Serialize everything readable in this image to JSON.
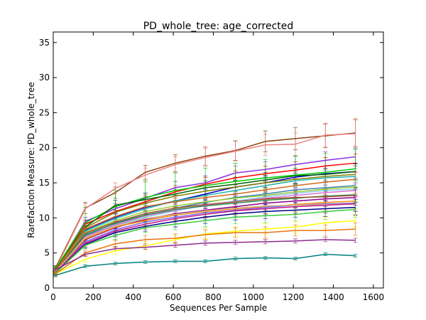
{
  "chart_data": {
    "type": "line",
    "title": "PD_whole_tree: age_corrected",
    "xlabel": "Sequences Per Sample",
    "ylabel": "Rarefaction Measure: PD_whole_tree",
    "xlim": [
      0,
      1650
    ],
    "ylim": [
      0,
      36.5
    ],
    "xticks": [
      "0",
      "200",
      "400",
      "600",
      "800",
      "1000",
      "1200",
      "1400",
      "1600"
    ],
    "yticks": [
      "0",
      "5",
      "10",
      "15",
      "20",
      "25",
      "30",
      "35"
    ],
    "grid": false,
    "legend": "none",
    "x": [
      10,
      160,
      310,
      460,
      610,
      760,
      910,
      1060,
      1210,
      1360,
      1510
    ],
    "series": [
      {
        "color": "#8b4513",
        "values": [
          2.8,
          11.4,
          13.6,
          16.5,
          17.8,
          18.8,
          19.6,
          20.9,
          21.3,
          21.7,
          22.1
        ],
        "err": [
          0.4,
          0.8,
          0.8,
          1.0,
          1.2,
          1.3,
          1.4,
          1.5,
          1.6,
          1.7,
          1.9
        ]
      },
      {
        "color": "#f08080",
        "values": [
          2.6,
          11.3,
          14.2,
          16.1,
          17.6,
          18.6,
          19.5,
          20.4,
          20.5,
          21.8,
          22.0
        ],
        "err": [
          0.4,
          0.7,
          0.8,
          1.0,
          1.1,
          1.3,
          1.4,
          1.5,
          1.6,
          1.7,
          2.2
        ]
      },
      {
        "color": "#8a2be2",
        "values": [
          2.5,
          9.5,
          11.3,
          12.8,
          14.3,
          15.0,
          16.4,
          16.9,
          17.6,
          18.2,
          18.7
        ],
        "err": [
          0.3,
          0.6,
          0.7,
          0.8,
          0.9,
          1.0,
          1.0,
          1.1,
          1.2,
          1.2,
          1.3
        ]
      },
      {
        "color": "#ff0000",
        "values": [
          2.4,
          9.1,
          10.9,
          12.3,
          13.7,
          14.8,
          15.7,
          16.3,
          16.8,
          17.4,
          17.8
        ],
        "err": [
          0.3,
          0.6,
          0.7,
          0.8,
          0.9,
          1.0,
          1.0,
          1.1,
          1.2,
          1.2,
          1.3
        ]
      },
      {
        "color": "#00cc00",
        "values": [
          2.7,
          9.3,
          11.6,
          12.9,
          13.9,
          14.6,
          15.2,
          15.7,
          16.1,
          16.5,
          17.0
        ],
        "err": [
          0.4,
          2.2,
          2.3,
          2.4,
          2.5,
          2.5,
          2.6,
          2.6,
          2.7,
          2.7,
          2.8
        ]
      },
      {
        "color": "#0000cd",
        "values": [
          2.3,
          8.3,
          10.1,
          11.5,
          12.4,
          13.4,
          14.4,
          15.0,
          15.8,
          16.3,
          16.6
        ],
        "err": [
          0.3,
          0.5,
          0.6,
          0.7,
          0.8,
          0.9,
          0.9,
          1.0,
          1.0,
          1.1,
          1.1
        ]
      },
      {
        "color": "#006400",
        "values": [
          2.6,
          8.7,
          11.8,
          12.6,
          13.4,
          14.3,
          14.8,
          15.4,
          16.0,
          16.2,
          16.6
        ],
        "err": [
          0.3,
          0.6,
          0.7,
          0.8,
          0.9,
          1.0,
          1.0,
          1.1,
          1.1,
          1.2,
          1.2
        ]
      },
      {
        "color": "#808000",
        "values": [
          2.5,
          8.6,
          10.8,
          12.1,
          13.1,
          13.8,
          14.4,
          15.0,
          15.5,
          15.9,
          16.2
        ],
        "err": [
          0.3,
          0.6,
          0.7,
          0.8,
          0.9,
          1.0,
          1.0,
          1.1,
          1.1,
          1.2,
          1.2
        ]
      },
      {
        "color": "#20b2aa",
        "values": [
          2.4,
          8.1,
          9.9,
          11.3,
          12.4,
          13.2,
          13.9,
          14.6,
          15.3,
          15.7,
          15.9
        ],
        "err": [
          0.3,
          0.5,
          0.6,
          0.7,
          0.8,
          0.9,
          0.9,
          1.0,
          1.0,
          1.1,
          1.1
        ]
      },
      {
        "color": "#d2691e",
        "values": [
          2.5,
          8.4,
          10.2,
          11.6,
          12.3,
          12.9,
          13.4,
          14.0,
          14.6,
          15.1,
          15.5
        ],
        "err": [
          0.3,
          0.5,
          0.6,
          0.7,
          0.8,
          0.9,
          0.9,
          1.0,
          1.0,
          1.1,
          1.1
        ]
      },
      {
        "color": "#4682b4",
        "values": [
          2.3,
          7.4,
          9.3,
          10.6,
          11.4,
          12.2,
          12.9,
          13.4,
          14.0,
          14.3,
          14.6
        ],
        "err": [
          0.3,
          0.5,
          0.6,
          0.7,
          0.8,
          0.9,
          0.9,
          1.0,
          1.0,
          1.1,
          1.1
        ]
      },
      {
        "color": "#9acd32",
        "values": [
          2.4,
          7.9,
          9.6,
          10.9,
          11.7,
          12.3,
          12.8,
          13.2,
          13.7,
          14.1,
          14.4
        ],
        "err": [
          0.3,
          0.5,
          0.6,
          0.7,
          0.8,
          0.9,
          0.9,
          1.0,
          1.0,
          1.1,
          1.1
        ]
      },
      {
        "color": "#87ceeb",
        "values": [
          2.3,
          7.1,
          8.9,
          10.1,
          11.0,
          11.8,
          12.4,
          13.0,
          13.5,
          13.9,
          14.1
        ],
        "err": [
          0.3,
          0.5,
          0.6,
          0.7,
          0.8,
          0.9,
          0.9,
          1.0,
          1.0,
          1.1,
          1.1
        ]
      },
      {
        "color": "#da70d6",
        "values": [
          2.2,
          7.3,
          9.0,
          10.3,
          11.1,
          11.8,
          12.3,
          12.8,
          13.2,
          13.6,
          13.9
        ],
        "err": [
          0.3,
          0.5,
          0.6,
          0.7,
          0.8,
          0.9,
          0.9,
          1.0,
          1.0,
          1.1,
          1.1
        ]
      },
      {
        "color": "#2e8b57",
        "values": [
          2.3,
          7.6,
          9.2,
          10.4,
          11.2,
          11.7,
          12.1,
          12.5,
          12.8,
          13.1,
          13.3
        ],
        "err": [
          0.3,
          0.5,
          0.6,
          0.7,
          0.8,
          0.9,
          0.9,
          1.0,
          1.0,
          1.1,
          1.1
        ]
      },
      {
        "color": "#a0522d",
        "values": [
          2.4,
          7.8,
          9.4,
          10.6,
          11.4,
          11.9,
          12.3,
          12.7,
          12.9,
          13.0,
          13.2
        ],
        "err": [
          0.3,
          0.5,
          0.6,
          0.7,
          0.8,
          0.9,
          0.9,
          1.0,
          1.0,
          1.1,
          1.1
        ]
      },
      {
        "color": "#8b008b",
        "values": [
          2.2,
          6.9,
          8.6,
          9.8,
          10.6,
          11.1,
          11.6,
          12.1,
          12.4,
          12.7,
          12.9
        ],
        "err": [
          0.3,
          0.5,
          0.6,
          0.7,
          0.8,
          0.9,
          0.9,
          1.0,
          1.0,
          1.1,
          1.1
        ]
      },
      {
        "color": "#ff8c00",
        "values": [
          2.3,
          7.0,
          8.7,
          9.6,
          10.4,
          10.9,
          11.3,
          11.6,
          11.9,
          12.2,
          12.4
        ],
        "err": [
          0.3,
          0.5,
          0.6,
          0.7,
          0.8,
          0.9,
          0.9,
          1.0,
          1.0,
          1.1,
          1.1
        ]
      },
      {
        "color": "#7b68ee",
        "values": [
          2.2,
          6.6,
          8.3,
          9.4,
          10.1,
          10.7,
          11.1,
          11.5,
          11.8,
          12.0,
          12.1
        ],
        "err": [
          0.3,
          0.5,
          0.6,
          0.7,
          0.8,
          0.9,
          0.9,
          1.0,
          1.0,
          1.1,
          1.1
        ]
      },
      {
        "color": "#d2b48c",
        "values": [
          2.3,
          7.2,
          8.8,
          9.9,
          10.5,
          11.0,
          11.4,
          11.7,
          11.8,
          11.9,
          12.0
        ],
        "err": [
          0.3,
          0.5,
          0.6,
          0.7,
          0.8,
          0.9,
          0.9,
          1.0,
          1.0,
          1.1,
          1.1
        ]
      },
      {
        "color": "#c71585",
        "values": [
          2.2,
          6.4,
          8.1,
          9.1,
          9.9,
          10.5,
          11.0,
          11.3,
          11.6,
          11.8,
          12.0
        ],
        "err": [
          0.3,
          0.5,
          0.6,
          0.7,
          0.8,
          0.9,
          0.9,
          1.0,
          1.0,
          1.1,
          1.1
        ]
      },
      {
        "color": "#00008b",
        "values": [
          2.1,
          6.2,
          7.9,
          8.8,
          9.5,
          10.1,
          10.6,
          10.9,
          11.1,
          11.3,
          11.5
        ],
        "err": [
          0.3,
          0.5,
          0.6,
          0.7,
          0.8,
          0.9,
          0.9,
          1.0,
          1.0,
          1.1,
          1.1
        ]
      },
      {
        "color": "#32cd32",
        "values": [
          2.1,
          6.1,
          7.5,
          8.6,
          9.1,
          9.6,
          10.1,
          10.3,
          10.5,
          10.9,
          11.2
        ],
        "err": [
          0.3,
          0.5,
          0.6,
          0.7,
          0.8,
          0.9,
          0.9,
          1.0,
          1.0,
          1.1,
          1.1
        ]
      },
      {
        "color": "#ffff00",
        "values": [
          2.0,
          4.1,
          5.3,
          6.0,
          6.9,
          7.7,
          8.1,
          8.4,
          8.7,
          9.3,
          9.6
        ],
        "err": [
          0.3,
          0.4,
          0.5,
          0.6,
          0.6,
          0.7,
          0.7,
          0.8,
          0.8,
          0.8,
          0.9
        ]
      },
      {
        "color": "#e8730c",
        "values": [
          2.0,
          5.0,
          6.3,
          6.9,
          7.1,
          7.6,
          7.9,
          7.9,
          8.2,
          8.2,
          8.4
        ],
        "err": [
          0.3,
          0.4,
          0.5,
          0.6,
          0.6,
          0.7,
          0.7,
          0.8,
          0.8,
          0.8,
          0.9
        ]
      },
      {
        "color": "#8e2a8e",
        "values": [
          2.6,
          4.8,
          5.6,
          5.8,
          6.1,
          6.4,
          6.5,
          6.6,
          6.7,
          6.9,
          6.8
        ],
        "err": [
          0.2,
          0.3,
          0.3,
          0.3,
          0.3,
          0.3,
          0.3,
          0.3,
          0.3,
          0.3,
          0.3
        ]
      },
      {
        "color": "#008080",
        "values": [
          1.8,
          3.1,
          3.5,
          3.7,
          3.8,
          3.8,
          4.2,
          4.3,
          4.2,
          4.8,
          4.6
        ],
        "err": [
          0.2,
          0.2,
          0.2,
          0.2,
          0.2,
          0.2,
          0.2,
          0.2,
          0.2,
          0.2,
          0.2
        ]
      }
    ]
  }
}
